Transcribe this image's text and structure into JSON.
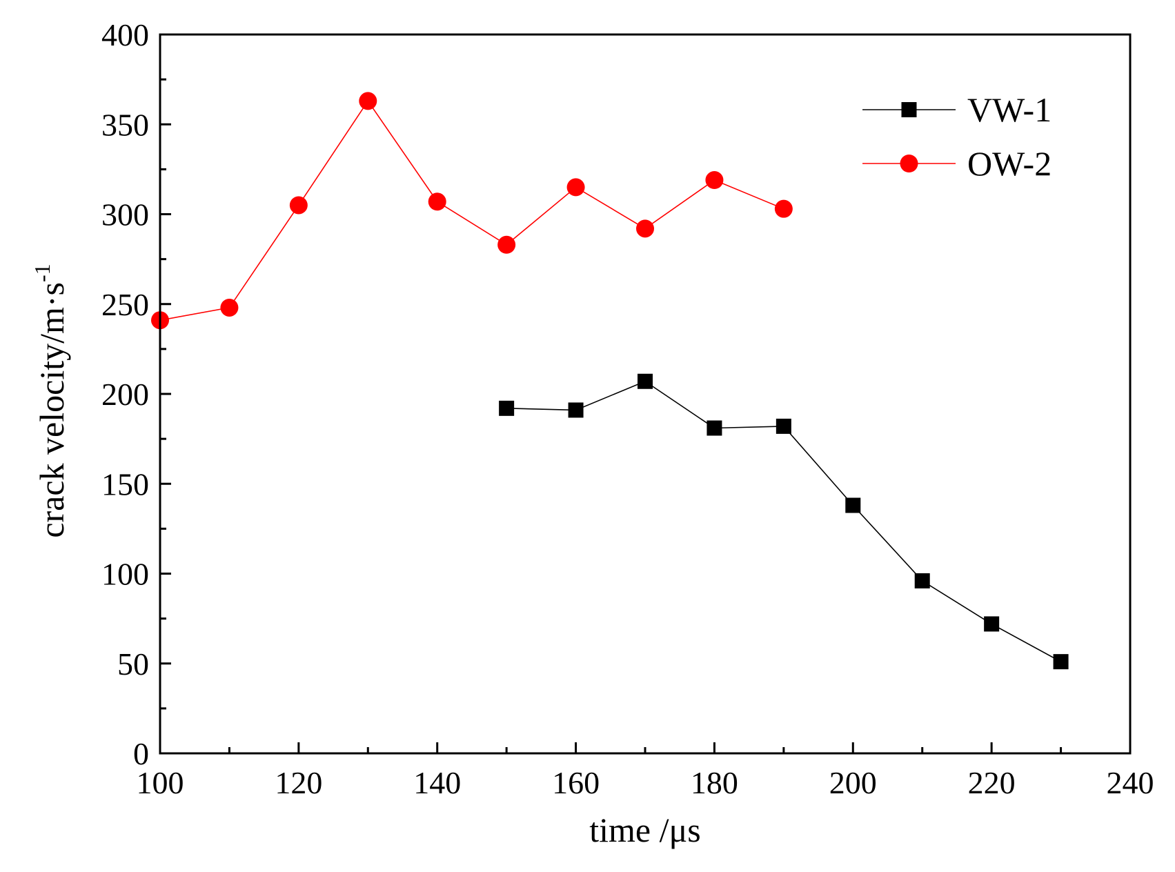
{
  "chart_data": {
    "type": "line",
    "title": "",
    "xlabel": "time /μs",
    "ylabel": {
      "main": "crack velocity/m·s",
      "superscript": "-1"
    },
    "xlim": [
      100,
      240
    ],
    "ylim": [
      0,
      400
    ],
    "x_ticks": [
      100,
      120,
      140,
      160,
      180,
      200,
      220,
      240
    ],
    "y_ticks": [
      0,
      50,
      100,
      150,
      200,
      250,
      300,
      350,
      400
    ],
    "x_minor_step": 10,
    "y_minor_step": 25,
    "grid": false,
    "legend_position": "top-right",
    "series": [
      {
        "name": "VW-1",
        "marker": "square",
        "color": "#000000",
        "x": [
          150,
          160,
          170,
          180,
          190,
          200,
          210,
          220,
          230
        ],
        "y": [
          192,
          191,
          207,
          181,
          182,
          138,
          96,
          72,
          51
        ]
      },
      {
        "name": "OW-2",
        "marker": "circle",
        "color": "#ff0000",
        "x": [
          100,
          110,
          120,
          130,
          140,
          150,
          160,
          170,
          180,
          190
        ],
        "y": [
          241,
          248,
          305,
          363,
          307,
          283,
          315,
          292,
          319,
          303
        ]
      }
    ]
  }
}
